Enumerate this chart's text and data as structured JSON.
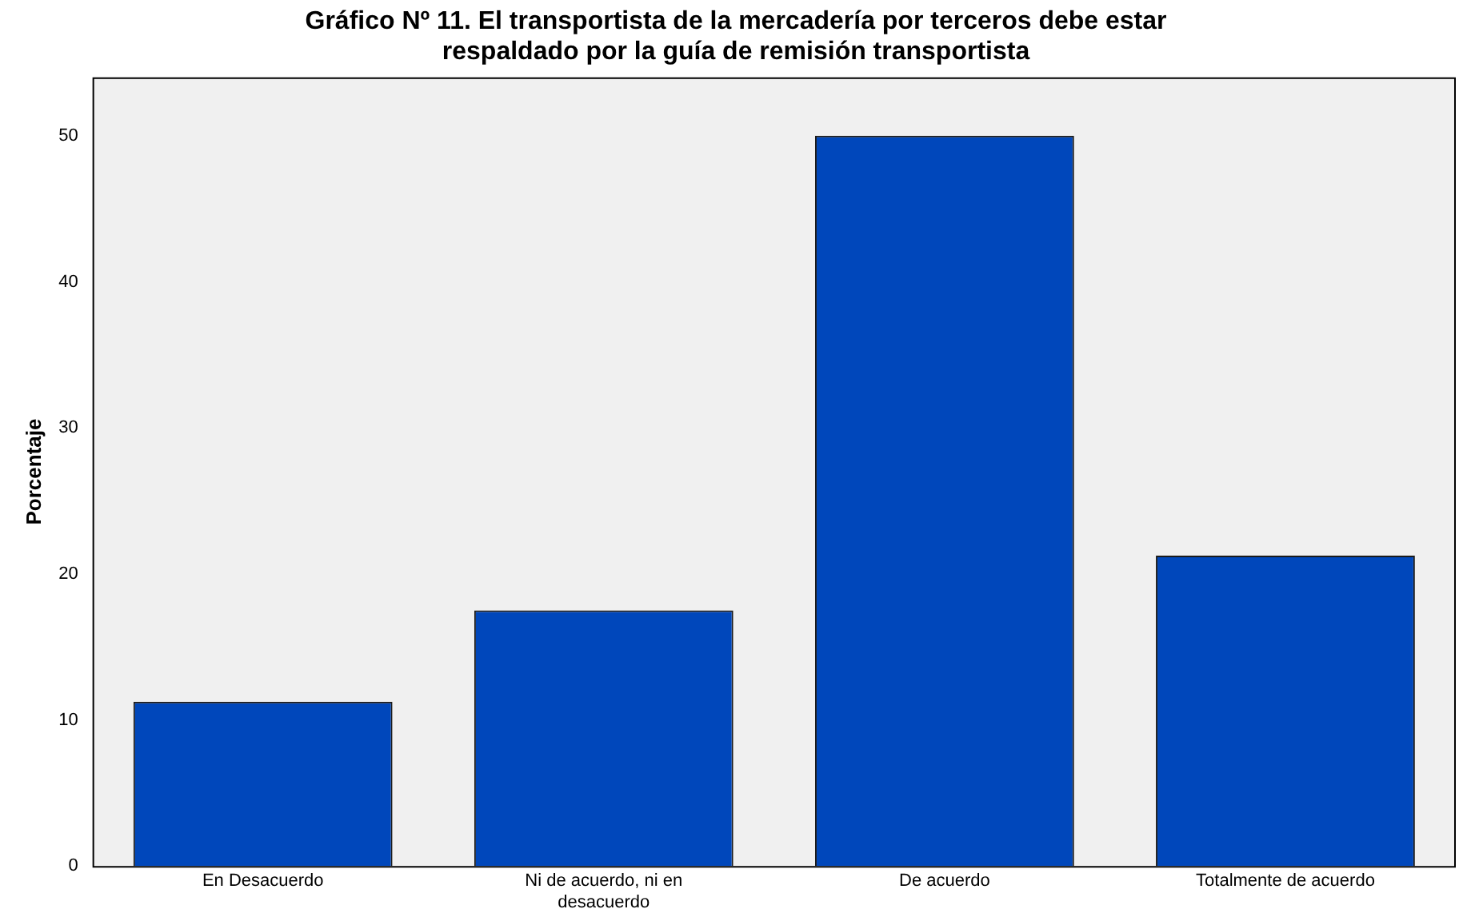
{
  "chart_data": {
    "type": "bar",
    "title": "Gráfico Nº 11. El transportista de la mercadería por terceros debe estar respaldado por la guía de remisión transportista",
    "ylabel": "Porcentaje",
    "categories": [
      "En Desacuerdo",
      "Ni de acuerdo, ni en desacuerdo",
      "De acuerdo",
      "Totalmente de acuerdo"
    ],
    "values": [
      11.25,
      17.5,
      50,
      21.25
    ],
    "color": "#0047bb",
    "ylim": [
      0,
      54
    ],
    "yticks": [
      0,
      10,
      20,
      30,
      40,
      50
    ],
    "grid": false,
    "legend": false
  }
}
